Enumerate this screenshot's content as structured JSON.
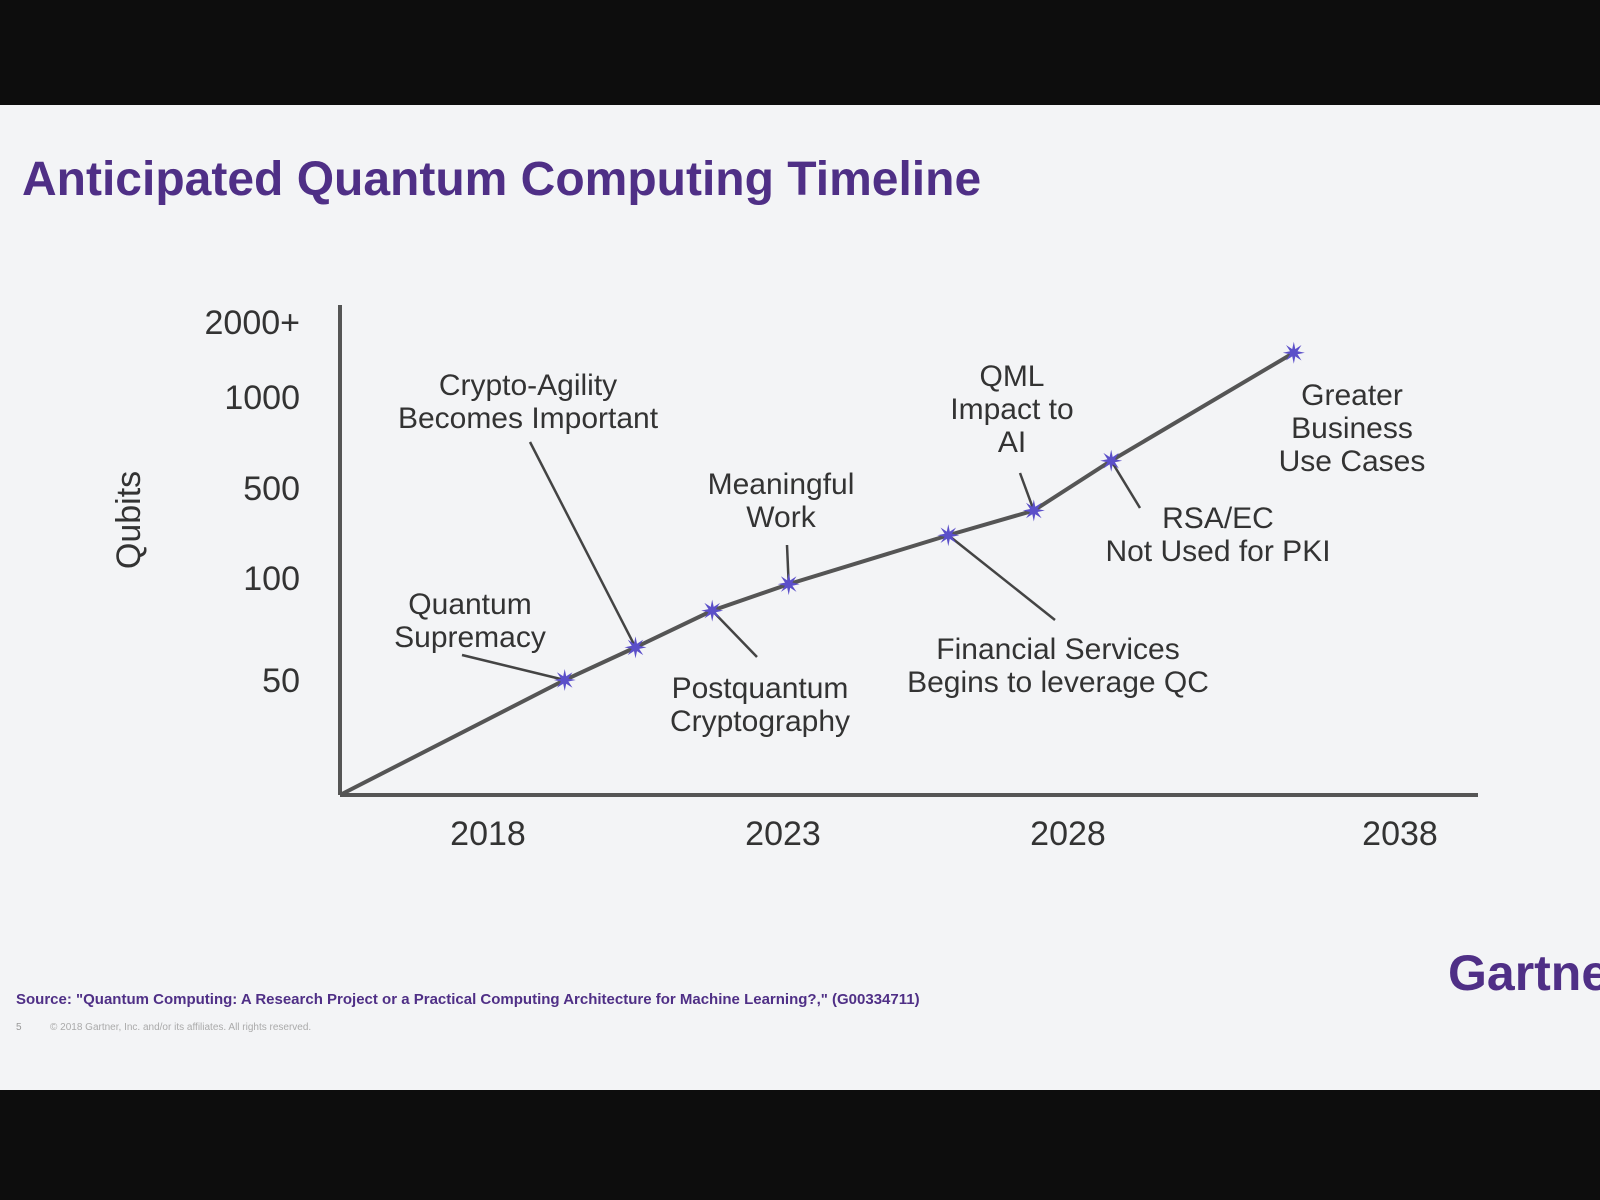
{
  "chart_data": {
    "type": "line",
    "title": "Anticipated Quantum Computing Timeline",
    "y_label": "Qubits",
    "xlim": [
      2015.5,
      2040
    ],
    "xticks": [
      2018,
      2023,
      2028,
      2038
    ],
    "ylim": [
      0,
      2000
    ],
    "yticks": [
      50,
      100,
      500,
      1000,
      {
        "value": 2000,
        "label": "2000+"
      }
    ],
    "series": [
      {
        "color": "#555555",
        "marker_color": "#5b4fc9",
        "x": [
          2015.5,
          2019.3,
          2020.5,
          2021.8,
          2023.1,
          2025.9,
          2027.4,
          2029.3,
          2034.8
        ],
        "values": [
          0,
          50,
          66,
          84,
          97,
          290,
          400,
          650,
          1590
        ],
        "labels": [
          null,
          [
            "Quantum",
            "Supremacy"
          ],
          [
            "Crypto-Agility",
            "Becomes Important"
          ],
          [
            "Postquantum",
            "Cryptography"
          ],
          [
            "Meaningful",
            "Work"
          ],
          [
            "Financial Services",
            "Begins to leverage QC"
          ],
          [
            "QML",
            "Impact to",
            "AI"
          ],
          [
            "RSA/EC",
            "Not Used for PKI"
          ],
          [
            "Greater",
            "Business",
            "Use Cases"
          ]
        ]
      }
    ],
    "source": "Source: \"Quantum Computing: A Research Project or a Practical Computing Architecture for Machine Learning?,\" (G00334711)",
    "copyright": "© 2018 Gartner, Inc. and/or its affiliates. All rights reserved.",
    "page_number": "5",
    "logo": "Gartner"
  }
}
